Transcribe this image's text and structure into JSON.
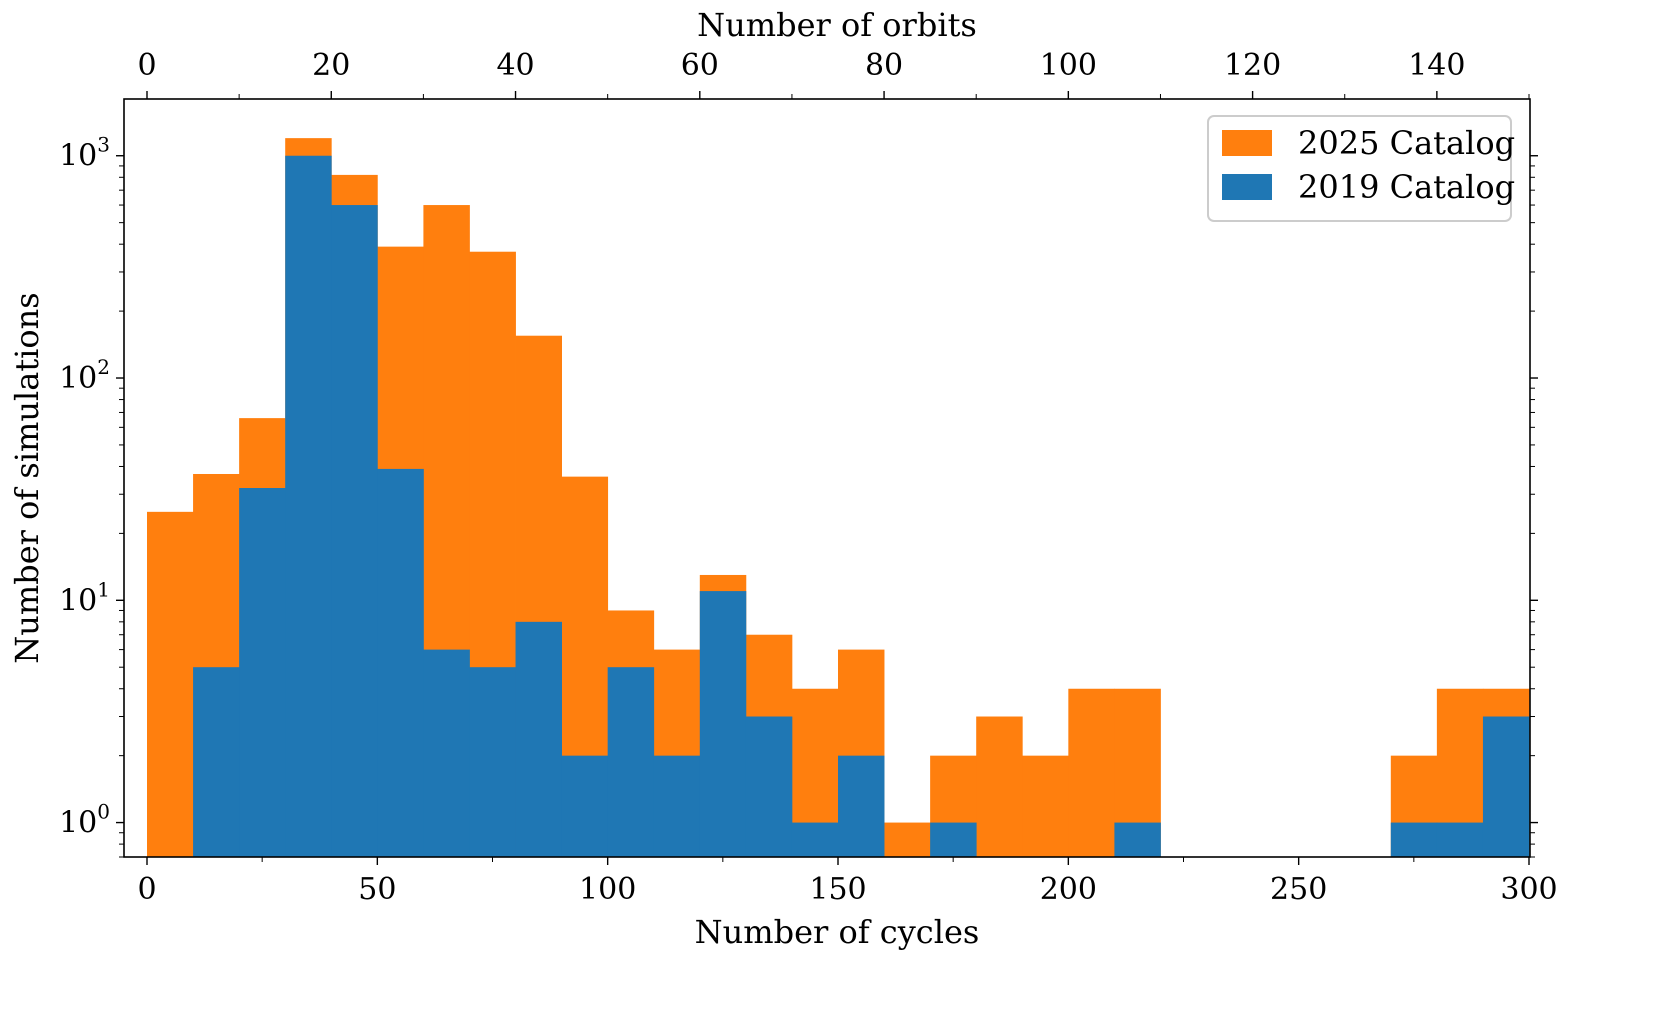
{
  "chart_data": {
    "type": "bar",
    "subtype": "stacked-histogram",
    "yscale": "log",
    "xlabel": "Number of cycles",
    "ylabel": "Number of simulations",
    "top_xlabel": "Number of orbits",
    "xlim": [
      0,
      300
    ],
    "ylim": [
      0.7,
      1800
    ],
    "top_xlim": [
      0,
      150
    ],
    "x_ticks": [
      0,
      50,
      100,
      150,
      200,
      250,
      300
    ],
    "x_tick_labels": [
      "0",
      "50",
      "100",
      "150",
      "200",
      "250",
      "300"
    ],
    "top_ticks": [
      0,
      20,
      40,
      60,
      80,
      100,
      120,
      140
    ],
    "top_tick_labels": [
      "0",
      "20",
      "40",
      "60",
      "80",
      "100",
      "120",
      "140"
    ],
    "y_ticks": [
      {
        "value": 1,
        "base": "10",
        "exp": "0"
      },
      {
        "value": 10,
        "base": "10",
        "exp": "1"
      },
      {
        "value": 100,
        "base": "10",
        "exp": "2"
      },
      {
        "value": 1000,
        "base": "10",
        "exp": "3"
      }
    ],
    "bin_edges": [
      0,
      10,
      20,
      30,
      40,
      50,
      60,
      70,
      80,
      90,
      100,
      110,
      120,
      130,
      140,
      150,
      160,
      170,
      180,
      190,
      200,
      210,
      220,
      230,
      240,
      250,
      260,
      270,
      280,
      290,
      300
    ],
    "series": [
      {
        "name": "2025 Catalog",
        "color": "#ff7f0e",
        "values": [
          25,
          37,
          66,
          1200,
          820,
          390,
          600,
          370,
          155,
          36,
          9,
          6,
          13,
          7,
          4,
          6,
          1,
          2,
          3,
          2,
          4,
          4,
          0,
          0,
          0,
          0,
          0,
          2,
          4,
          4
        ]
      },
      {
        "name": "2019 Catalog",
        "color": "#1f77b4",
        "values": [
          0,
          5,
          32,
          1000,
          600,
          39,
          6,
          5,
          8,
          2,
          5,
          2,
          11,
          3,
          1,
          2,
          0,
          1,
          0,
          0,
          0,
          1,
          0,
          0,
          0,
          0,
          0,
          1,
          1,
          3
        ]
      }
    ],
    "legend": {
      "position": "top-right"
    }
  }
}
